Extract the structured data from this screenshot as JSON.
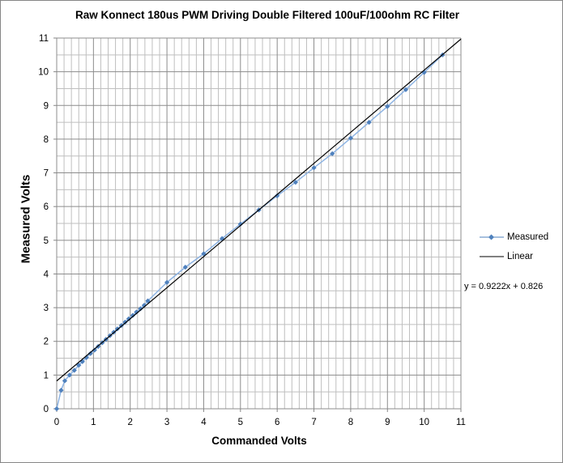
{
  "chart_data": {
    "type": "scatter",
    "title": "Raw Konnect 180us PWM Driving Double Filtered 100uF/100ohm RC Filter",
    "xlabel": "Commanded Volts",
    "ylabel": "Measured Volts",
    "xlim": [
      0,
      11
    ],
    "ylim": [
      0,
      11
    ],
    "x_ticks": [
      0,
      1,
      2,
      3,
      4,
      5,
      6,
      7,
      8,
      9,
      10,
      11
    ],
    "y_ticks": [
      0,
      1,
      2,
      3,
      4,
      5,
      6,
      7,
      8,
      9,
      10,
      11
    ],
    "grid": true,
    "legend_position": "right",
    "series": [
      {
        "name": "Measured",
        "style": "line-with-markers",
        "color": "#4F81BD",
        "x": [
          0,
          0.12,
          0.22,
          0.35,
          0.48,
          0.6,
          0.7,
          0.81,
          0.92,
          1.03,
          1.13,
          1.24,
          1.34,
          1.45,
          1.55,
          1.65,
          1.76,
          1.86,
          1.96,
          2.07,
          2.17,
          2.28,
          2.38,
          2.48,
          3.0,
          3.5,
          4.0,
          4.5,
          5.0,
          5.5,
          6.0,
          6.5,
          7.0,
          7.5,
          8.0,
          8.5,
          9.0,
          9.5,
          10.0,
          10.5
        ],
        "y": [
          0,
          0.55,
          0.83,
          1.0,
          1.14,
          1.29,
          1.4,
          1.52,
          1.64,
          1.74,
          1.85,
          1.96,
          2.06,
          2.17,
          2.27,
          2.37,
          2.47,
          2.57,
          2.67,
          2.77,
          2.87,
          2.97,
          3.07,
          3.2,
          3.75,
          4.2,
          4.6,
          5.05,
          5.48,
          5.9,
          6.32,
          6.72,
          7.15,
          7.57,
          8.03,
          8.5,
          8.97,
          9.47,
          9.98,
          10.5
        ]
      },
      {
        "name": "Linear",
        "style": "line",
        "color": "#000000",
        "slope": 0.9222,
        "intercept": 0.826,
        "x": [
          0,
          11
        ],
        "y": [
          0.826,
          10.97
        ]
      }
    ],
    "annotations": [
      "y = 0.9222x + 0.826"
    ]
  },
  "legend": {
    "items": [
      {
        "label": "Measured"
      },
      {
        "label": "Linear"
      }
    ]
  },
  "trendline_equation": "y = 0.9222x + 0.826"
}
